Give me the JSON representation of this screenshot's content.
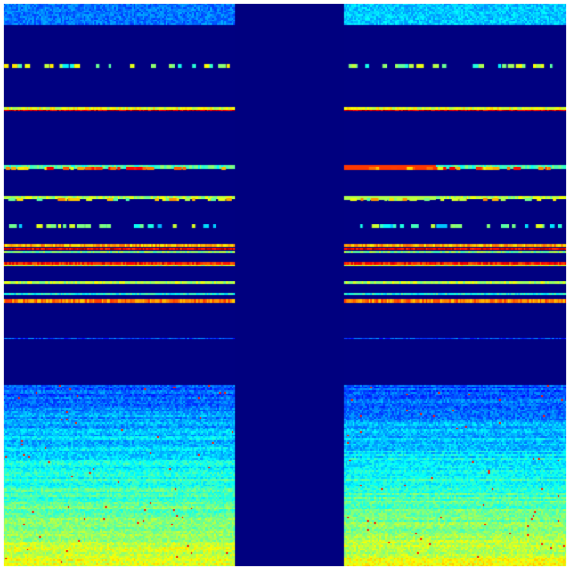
{
  "image": {
    "kind": "heatmap-raster",
    "colormap": "jet",
    "colors": {
      "background": "#ffffff",
      "low": "#000080",
      "gap": "#00007f",
      "blue": "#0000ff",
      "cyan": "#00ffff",
      "green": "#80ff80",
      "yellow": "#ffff00",
      "red": "#ff0000"
    }
  }
}
